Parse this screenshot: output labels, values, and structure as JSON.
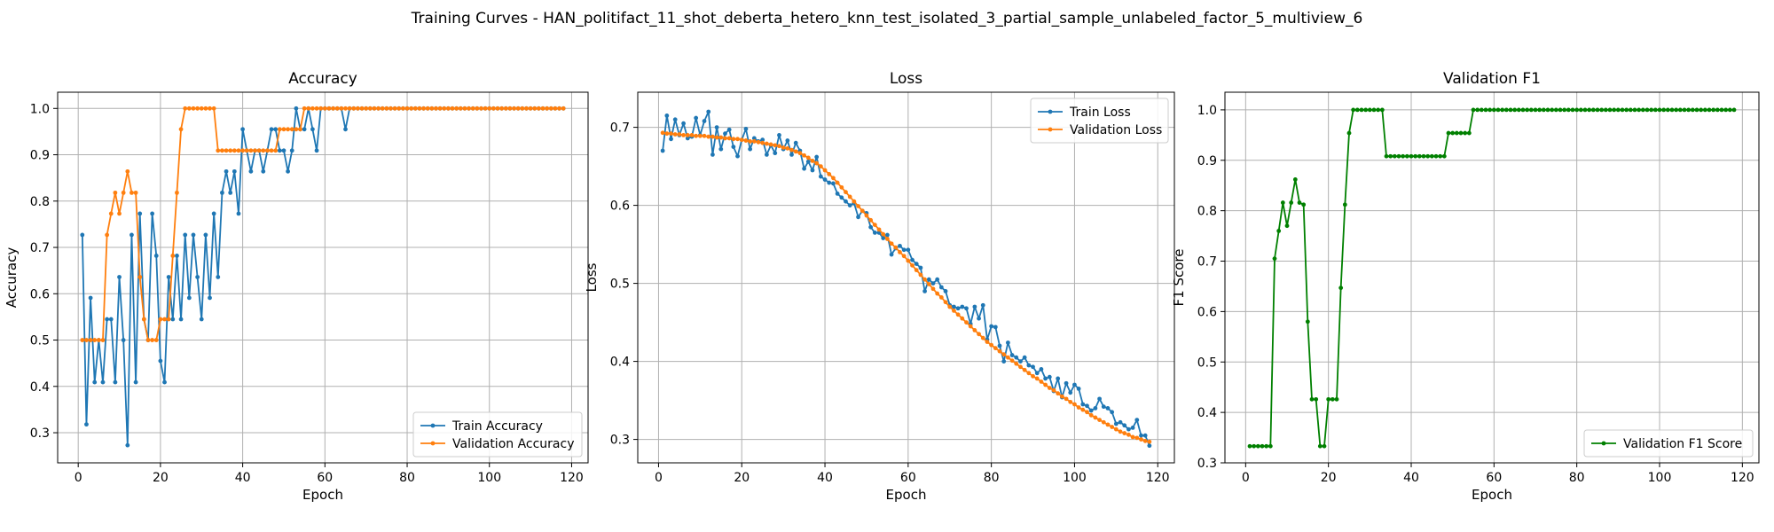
{
  "suptitle": "Training Curves - HAN_politifact_11_shot_deberta_hetero_knn_test_isolated_3_partial_sample_unlabeled_factor_5_multiview_6",
  "colors": {
    "train": "#1f77b4",
    "validation": "#ff7f0e",
    "f1": "#008000",
    "grid": "#b0b0b0"
  },
  "chart_data": [
    {
      "type": "line",
      "title": "Accuracy",
      "xlabel": "Epoch",
      "ylabel": "Accuracy",
      "xlim": [
        -5,
        124
      ],
      "ylim": [
        0.235,
        1.035
      ],
      "xticks": [
        0,
        20,
        40,
        60,
        80,
        100,
        120
      ],
      "yticks": [
        0.3,
        0.4,
        0.5,
        0.6,
        0.7,
        0.8,
        0.9,
        1.0
      ],
      "yticklabels": [
        "0.3",
        "0.4",
        "0.5",
        "0.6",
        "0.7",
        "0.8",
        "0.9",
        "1.0"
      ],
      "grid": true,
      "legend": "lower-right",
      "series": [
        {
          "name": "Train Accuracy",
          "color": "#1f77b4",
          "y": [
            0.727,
            0.318,
            0.591,
            0.409,
            0.5,
            0.409,
            0.545,
            0.545,
            0.409,
            0.636,
            0.5,
            0.273,
            0.727,
            0.409,
            0.773,
            0.545,
            0.5,
            0.773,
            0.682,
            0.455,
            0.409,
            0.636,
            0.545,
            0.682,
            0.545,
            0.727,
            0.591,
            0.727,
            0.636,
            0.545,
            0.727,
            0.591,
            0.773,
            0.636,
            0.818,
            0.864,
            0.818,
            0.864,
            0.773,
            0.955,
            0.909,
            0.864,
            0.909,
            0.909,
            0.864,
            0.909,
            0.955,
            0.955,
            0.909,
            0.909,
            0.864,
            0.909,
            1.0,
            0.955,
            0.955,
            1.0,
            0.955,
            0.909,
            1.0,
            1.0,
            1.0,
            1.0,
            1.0,
            1.0,
            0.955,
            1.0,
            1.0,
            1.0,
            1.0,
            1.0,
            1.0,
            1.0,
            1.0,
            1.0,
            1.0,
            1.0,
            1.0,
            1.0,
            1.0,
            1.0,
            1.0,
            1.0,
            1.0,
            1.0,
            1.0,
            1.0,
            1.0,
            1.0,
            1.0,
            1.0,
            1.0,
            1.0,
            1.0,
            1.0,
            1.0,
            1.0,
            1.0,
            1.0,
            1.0,
            1.0,
            1.0,
            1.0,
            1.0,
            1.0,
            1.0,
            1.0,
            1.0,
            1.0,
            1.0,
            1.0,
            1.0,
            1.0,
            1.0,
            1.0,
            1.0,
            1.0,
            1.0,
            1.0
          ]
        },
        {
          "name": "Validation Accuracy",
          "color": "#ff7f0e",
          "y": [
            0.5,
            0.5,
            0.5,
            0.5,
            0.5,
            0.5,
            0.727,
            0.773,
            0.818,
            0.773,
            0.818,
            0.864,
            0.818,
            0.818,
            0.636,
            0.545,
            0.5,
            0.5,
            0.5,
            0.545,
            0.545,
            0.545,
            0.682,
            0.818,
            0.955,
            1.0,
            1.0,
            1.0,
            1.0,
            1.0,
            1.0,
            1.0,
            1.0,
            0.909,
            0.909,
            0.909,
            0.909,
            0.909,
            0.909,
            0.909,
            0.909,
            0.909,
            0.909,
            0.909,
            0.909,
            0.909,
            0.909,
            0.909,
            0.955,
            0.955,
            0.955,
            0.955,
            0.955,
            0.955,
            1.0,
            1.0,
            1.0,
            1.0,
            1.0,
            1.0,
            1.0,
            1.0,
            1.0,
            1.0,
            1.0,
            1.0,
            1.0,
            1.0,
            1.0,
            1.0,
            1.0,
            1.0,
            1.0,
            1.0,
            1.0,
            1.0,
            1.0,
            1.0,
            1.0,
            1.0,
            1.0,
            1.0,
            1.0,
            1.0,
            1.0,
            1.0,
            1.0,
            1.0,
            1.0,
            1.0,
            1.0,
            1.0,
            1.0,
            1.0,
            1.0,
            1.0,
            1.0,
            1.0,
            1.0,
            1.0,
            1.0,
            1.0,
            1.0,
            1.0,
            1.0,
            1.0,
            1.0,
            1.0,
            1.0,
            1.0,
            1.0,
            1.0,
            1.0,
            1.0,
            1.0,
            1.0,
            1.0,
            1.0
          ]
        }
      ]
    },
    {
      "type": "line",
      "title": "Loss",
      "xlabel": "Epoch",
      "ylabel": "Loss",
      "xlim": [
        -5,
        124
      ],
      "ylim": [
        0.27,
        0.745
      ],
      "xticks": [
        0,
        20,
        40,
        60,
        80,
        100,
        120
      ],
      "yticks": [
        0.3,
        0.4,
        0.5,
        0.6,
        0.7
      ],
      "yticklabels": [
        "0.3",
        "0.4",
        "0.5",
        "0.6",
        "0.7"
      ],
      "grid": true,
      "legend": "top-right",
      "series": [
        {
          "name": "Train Loss",
          "color": "#1f77b4",
          "y": [
            0.67,
            0.715,
            0.685,
            0.71,
            0.69,
            0.705,
            0.686,
            0.688,
            0.712,
            0.69,
            0.708,
            0.72,
            0.665,
            0.7,
            0.672,
            0.692,
            0.697,
            0.675,
            0.663,
            0.684,
            0.698,
            0.672,
            0.686,
            0.682,
            0.684,
            0.665,
            0.677,
            0.667,
            0.69,
            0.672,
            0.683,
            0.665,
            0.68,
            0.67,
            0.647,
            0.656,
            0.645,
            0.662,
            0.637,
            0.633,
            0.629,
            0.628,
            0.615,
            0.61,
            0.605,
            0.6,
            0.603,
            0.585,
            0.593,
            0.59,
            0.572,
            0.565,
            0.565,
            0.558,
            0.562,
            0.537,
            0.545,
            0.548,
            0.543,
            0.543,
            0.53,
            0.525,
            0.52,
            0.49,
            0.505,
            0.5,
            0.505,
            0.495,
            0.49,
            0.472,
            0.47,
            0.468,
            0.47,
            0.468,
            0.448,
            0.47,
            0.455,
            0.472,
            0.428,
            0.445,
            0.444,
            0.42,
            0.4,
            0.424,
            0.408,
            0.405,
            0.4,
            0.405,
            0.395,
            0.393,
            0.385,
            0.39,
            0.378,
            0.38,
            0.362,
            0.378,
            0.354,
            0.372,
            0.36,
            0.37,
            0.365,
            0.345,
            0.343,
            0.337,
            0.34,
            0.352,
            0.342,
            0.34,
            0.335,
            0.32,
            0.322,
            0.318,
            0.313,
            0.315,
            0.325,
            0.305,
            0.305,
            0.292
          ]
        },
        {
          "name": "Validation Loss",
          "color": "#ff7f0e",
          "y": [
            0.693,
            0.692,
            0.692,
            0.691,
            0.691,
            0.69,
            0.69,
            0.69,
            0.689,
            0.689,
            0.689,
            0.688,
            0.688,
            0.687,
            0.687,
            0.686,
            0.686,
            0.685,
            0.685,
            0.684,
            0.683,
            0.682,
            0.682,
            0.681,
            0.68,
            0.679,
            0.678,
            0.677,
            0.676,
            0.674,
            0.673,
            0.671,
            0.669,
            0.667,
            0.664,
            0.661,
            0.657,
            0.654,
            0.65,
            0.645,
            0.64,
            0.635,
            0.629,
            0.623,
            0.617,
            0.611,
            0.605,
            0.599,
            0.593,
            0.587,
            0.581,
            0.575,
            0.569,
            0.563,
            0.557,
            0.551,
            0.546,
            0.54,
            0.535,
            0.529,
            0.523,
            0.517,
            0.511,
            0.505,
            0.499,
            0.493,
            0.487,
            0.482,
            0.476,
            0.47,
            0.465,
            0.46,
            0.455,
            0.45,
            0.445,
            0.44,
            0.435,
            0.43,
            0.425,
            0.421,
            0.417,
            0.413,
            0.409,
            0.405,
            0.401,
            0.397,
            0.393,
            0.389,
            0.385,
            0.381,
            0.378,
            0.374,
            0.37,
            0.366,
            0.363,
            0.359,
            0.355,
            0.352,
            0.348,
            0.345,
            0.341,
            0.338,
            0.335,
            0.331,
            0.328,
            0.325,
            0.322,
            0.319,
            0.316,
            0.313,
            0.31,
            0.308,
            0.306,
            0.303,
            0.302,
            0.3,
            0.298,
            0.297
          ]
        }
      ]
    },
    {
      "type": "line",
      "title": "Validation F1",
      "xlabel": "Epoch",
      "ylabel": "F1 Score",
      "xlim": [
        -5,
        124
      ],
      "ylim": [
        0.3,
        1.035
      ],
      "xticks": [
        0,
        20,
        40,
        60,
        80,
        100,
        120
      ],
      "yticks": [
        0.3,
        0.4,
        0.5,
        0.6,
        0.7,
        0.8,
        0.9,
        1.0
      ],
      "yticklabels": [
        "0.3",
        "0.4",
        "0.5",
        "0.6",
        "0.7",
        "0.8",
        "0.9",
        "1.0"
      ],
      "grid": true,
      "legend": "lower-right",
      "series": [
        {
          "name": "Validation F1 Score",
          "color": "#008000",
          "y": [
            0.333,
            0.333,
            0.333,
            0.333,
            0.333,
            0.333,
            0.705,
            0.76,
            0.816,
            0.77,
            0.816,
            0.862,
            0.816,
            0.812,
            0.58,
            0.426,
            0.426,
            0.333,
            0.333,
            0.426,
            0.426,
            0.426,
            0.647,
            0.812,
            0.954,
            1.0,
            1.0,
            1.0,
            1.0,
            1.0,
            1.0,
            1.0,
            1.0,
            0.908,
            0.908,
            0.908,
            0.908,
            0.908,
            0.908,
            0.908,
            0.908,
            0.908,
            0.908,
            0.908,
            0.908,
            0.908,
            0.908,
            0.908,
            0.954,
            0.954,
            0.954,
            0.954,
            0.954,
            0.954,
            1.0,
            1.0,
            1.0,
            1.0,
            1.0,
            1.0,
            1.0,
            1.0,
            1.0,
            1.0,
            1.0,
            1.0,
            1.0,
            1.0,
            1.0,
            1.0,
            1.0,
            1.0,
            1.0,
            1.0,
            1.0,
            1.0,
            1.0,
            1.0,
            1.0,
            1.0,
            1.0,
            1.0,
            1.0,
            1.0,
            1.0,
            1.0,
            1.0,
            1.0,
            1.0,
            1.0,
            1.0,
            1.0,
            1.0,
            1.0,
            1.0,
            1.0,
            1.0,
            1.0,
            1.0,
            1.0,
            1.0,
            1.0,
            1.0,
            1.0,
            1.0,
            1.0,
            1.0,
            1.0,
            1.0,
            1.0,
            1.0,
            1.0,
            1.0,
            1.0,
            1.0,
            1.0,
            1.0,
            1.0
          ]
        }
      ]
    }
  ]
}
